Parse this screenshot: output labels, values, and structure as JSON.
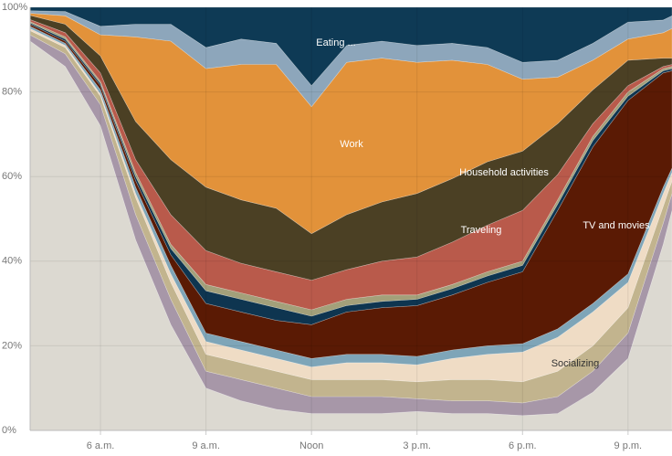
{
  "chart_data": {
    "type": "stacked-area",
    "x": [
      4,
      5,
      6,
      7,
      8,
      9,
      10,
      11,
      12,
      13,
      14,
      15,
      16,
      17,
      18,
      19,
      20,
      21,
      22,
      22.25
    ],
    "xlim": [
      4,
      22.25
    ],
    "xticks": [
      {
        "value": 6,
        "label": "6 a.m."
      },
      {
        "value": 9,
        "label": "9 a.m."
      },
      {
        "value": 12,
        "label": "Noon"
      },
      {
        "value": 15,
        "label": "3 p.m."
      },
      {
        "value": 18,
        "label": "6 p.m."
      },
      {
        "value": 21,
        "label": "9 p.m."
      }
    ],
    "ylim": [
      0,
      100
    ],
    "yticks": [
      {
        "value": 0,
        "label": "0%"
      },
      {
        "value": 20,
        "label": "20%"
      },
      {
        "value": 40,
        "label": "40%"
      },
      {
        "value": 60,
        "label": "60%"
      },
      {
        "value": 80,
        "label": "80%"
      },
      {
        "value": 100,
        "label": "100%"
      }
    ],
    "grid": true,
    "series": [
      {
        "color": "#dcd9d1",
        "values": [
          92,
          86,
          72,
          45,
          25,
          10,
          7,
          5,
          4,
          4,
          4,
          4.5,
          4,
          4,
          3.5,
          4,
          9,
          17,
          44,
          52
        ]
      },
      {
        "color": "#a797a8",
        "values": [
          1.5,
          3,
          5,
          6,
          6,
          4,
          5,
          5,
          4,
          4,
          4,
          3,
          3,
          3,
          3,
          4,
          5,
          6,
          5,
          4
        ]
      },
      {
        "color": "#c2b48e",
        "values": [
          1,
          1.5,
          2,
          4,
          4,
          4,
          4,
          4,
          4,
          4,
          4,
          4,
          5,
          5,
          5,
          6,
          6,
          6,
          4,
          3
        ]
      },
      {
        "name": "Socializing",
        "color": "#efdcc5",
        "values": [
          0.5,
          0.5,
          0.5,
          1,
          2,
          3,
          3,
          3,
          3,
          4,
          4,
          4,
          5,
          6,
          7,
          8,
          8,
          6,
          3,
          2
        ]
      },
      {
        "color": "#7ea5b8",
        "values": [
          0.5,
          0.5,
          1,
          1.5,
          2,
          2,
          2,
          2,
          2,
          2,
          2,
          2,
          2,
          2,
          2,
          2,
          2,
          2,
          1.5,
          1
        ]
      },
      {
        "name": "TV and movies",
        "color": "#5a1a04",
        "values": [
          0.5,
          0.5,
          1,
          1.5,
          2.5,
          7,
          7,
          7,
          8,
          10,
          11,
          12,
          13,
          15,
          17,
          28,
          37,
          41,
          27,
          23
        ]
      },
      {
        "color": "#0e3550",
        "values": [
          0.3,
          0.5,
          0.5,
          1,
          1.5,
          3,
          3,
          3,
          2,
          1.5,
          1.5,
          1.5,
          1.5,
          1.5,
          1.5,
          1.5,
          1.5,
          1,
          0.5,
          0.5
        ]
      },
      {
        "color": "#a3a07a",
        "values": [
          0.3,
          0.5,
          0.5,
          1,
          1,
          1.5,
          1.5,
          1.5,
          1.5,
          1.5,
          1.5,
          1,
          1,
          1,
          1,
          1,
          1,
          1,
          0.5,
          0.5
        ]
      },
      {
        "name": "Traveling",
        "color": "#b95a4b",
        "values": [
          0.5,
          1,
          2,
          3,
          7,
          8,
          7,
          7,
          7,
          7,
          8,
          9,
          10,
          11,
          12,
          6,
          3,
          1.5,
          0.5,
          0.5
        ]
      },
      {
        "name": "Household activities",
        "color": "#4b4024",
        "values": [
          1,
          2,
          4,
          9,
          13,
          15,
          15,
          15,
          11,
          13,
          14,
          15,
          15,
          15,
          14,
          12,
          8,
          6,
          2,
          1.5
        ]
      },
      {
        "name": "Work",
        "color": "#e2923a",
        "values": [
          0.5,
          2,
          5,
          20,
          28,
          28,
          32,
          34,
          30,
          36,
          34,
          31,
          28,
          23,
          17,
          11,
          7,
          5,
          6,
          7
        ]
      },
      {
        "color": "#8da6bb",
        "values": [
          0.6,
          1,
          2,
          3,
          4,
          5,
          6,
          5,
          5,
          4,
          4,
          4,
          4,
          4,
          4,
          4,
          4,
          4,
          3,
          3
        ]
      },
      {
        "name": "Eating ...",
        "color": "#0e3a55",
        "values": [
          0.8,
          1,
          4.5,
          4,
          4,
          9.5,
          7.5,
          8.5,
          18.5,
          9,
          8,
          9,
          8.5,
          9.5,
          13,
          12.5,
          8.5,
          3.5,
          3,
          2
        ]
      }
    ]
  }
}
